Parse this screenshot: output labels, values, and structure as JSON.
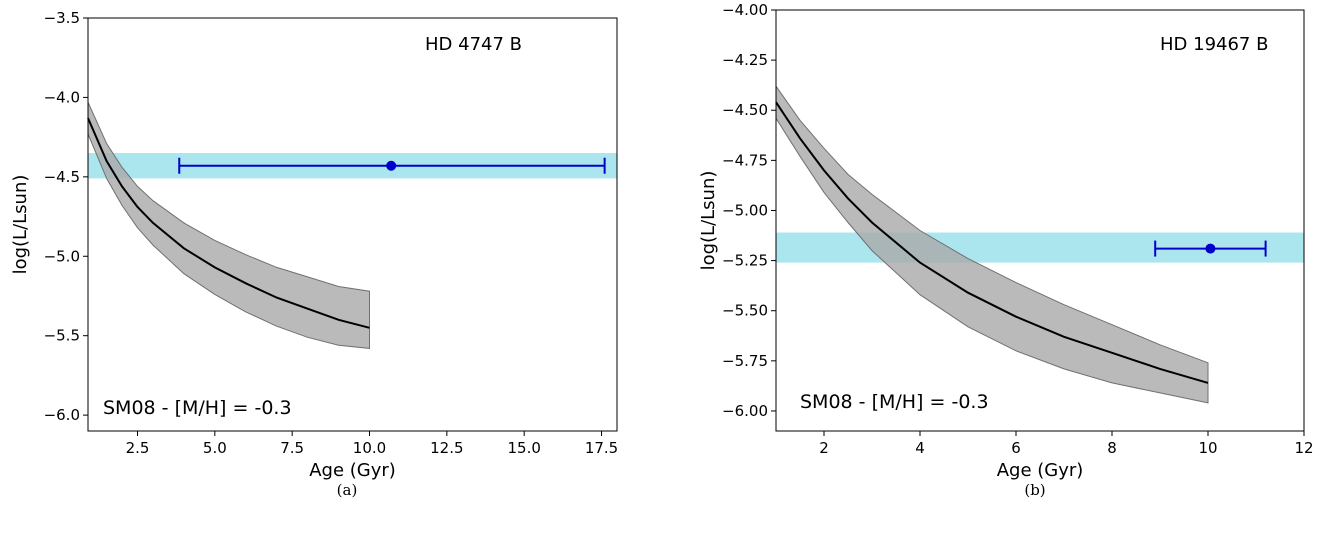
{
  "figure": {
    "panels": [
      {
        "caption": "(a)",
        "star_label": "HD 4747 B",
        "model_label": "SM08 - [M/H] = -0.3",
        "xlabel": "Age (Gyr)",
        "ylabel": "log(L/Lsun)",
        "xticks": [
          "2.5",
          "5.0",
          "7.5",
          "10.0",
          "12.5",
          "15.0",
          "17.5"
        ],
        "yticks": [
          "-3.5",
          "-4.0",
          "-4.5",
          "-5.0",
          "-5.5",
          "-6.0"
        ]
      },
      {
        "caption": "(b)",
        "star_label": "HD 19467 B",
        "model_label": "SM08 - [M/H] = -0.3",
        "xlabel": "Age (Gyr)",
        "ylabel": "log(L/Lsun)",
        "xticks": [
          "2",
          "4",
          "6",
          "8",
          "10",
          "12"
        ],
        "yticks": [
          "-4.00",
          "-4.25",
          "-4.50",
          "-4.75",
          "-5.00",
          "-5.25",
          "-5.50",
          "-5.75",
          "-6.00"
        ]
      }
    ]
  },
  "chart_data": [
    {
      "type": "line",
      "title": "HD 4747 B",
      "xlabel": "Age (Gyr)",
      "ylabel": "log(L/Lsun)",
      "xlim": [
        0.9,
        18.0
      ],
      "ylim": [
        -6.1,
        -3.5
      ],
      "xticks": [
        2.5,
        5.0,
        7.5,
        10.0,
        12.5,
        15.0,
        17.5
      ],
      "yticks": [
        -3.5,
        -4.0,
        -4.5,
        -5.0,
        -5.5,
        -6.0
      ],
      "grid": false,
      "colors": {
        "model": "#000000",
        "model_band": "#a9a9a9",
        "obs_band": "#8fdde9",
        "point": "#0000cc"
      },
      "model": {
        "x": [
          0.9,
          1.5,
          2.0,
          2.5,
          3.0,
          4.0,
          5.0,
          6.0,
          7.0,
          8.0,
          9.0,
          10.0
        ],
        "y": [
          -4.13,
          -4.4,
          -4.56,
          -4.69,
          -4.79,
          -4.95,
          -5.07,
          -5.17,
          -5.26,
          -5.33,
          -5.4,
          -5.45
        ],
        "y_upper": [
          -4.03,
          -4.29,
          -4.44,
          -4.56,
          -4.65,
          -4.79,
          -4.9,
          -4.99,
          -5.07,
          -5.13,
          -5.19,
          -5.22
        ],
        "y_lower": [
          -4.23,
          -4.51,
          -4.68,
          -4.82,
          -4.93,
          -5.11,
          -5.24,
          -5.35,
          -5.44,
          -5.51,
          -5.56,
          -5.58
        ]
      },
      "observed_luminosity_band": [
        -4.51,
        -4.35
      ],
      "measurement": {
        "x": 10.7,
        "y": -4.43,
        "x_err": [
          3.85,
          17.6
        ]
      }
    },
    {
      "type": "line",
      "title": "HD 19467 B",
      "xlabel": "Age (Gyr)",
      "ylabel": "log(L/Lsun)",
      "xlim": [
        1.0,
        12.0
      ],
      "ylim": [
        -6.1,
        -4.0
      ],
      "xticks": [
        2,
        4,
        6,
        8,
        10,
        12
      ],
      "yticks": [
        -4.0,
        -4.25,
        -4.5,
        -4.75,
        -5.0,
        -5.25,
        -5.5,
        -5.75,
        -6.0
      ],
      "grid": false,
      "colors": {
        "model": "#000000",
        "model_band": "#a9a9a9",
        "obs_band": "#8fdde9",
        "point": "#0000cc"
      },
      "model": {
        "x": [
          1.0,
          1.5,
          2.0,
          2.5,
          3.0,
          4.0,
          5.0,
          6.0,
          7.0,
          8.0,
          9.0,
          10.0
        ],
        "y": [
          -4.46,
          -4.64,
          -4.8,
          -4.94,
          -5.06,
          -5.26,
          -5.41,
          -5.53,
          -5.63,
          -5.71,
          -5.79,
          -5.86
        ],
        "y_upper": [
          -4.38,
          -4.55,
          -4.69,
          -4.82,
          -4.92,
          -5.1,
          -5.24,
          -5.36,
          -5.47,
          -5.57,
          -5.67,
          -5.76
        ],
        "y_lower": [
          -4.54,
          -4.73,
          -4.91,
          -5.06,
          -5.2,
          -5.42,
          -5.58,
          -5.7,
          -5.79,
          -5.86,
          -5.91,
          -5.96
        ]
      },
      "observed_luminosity_band": [
        -5.26,
        -5.11
      ],
      "measurement": {
        "x": 10.05,
        "y": -5.19,
        "x_err": [
          8.9,
          11.2
        ]
      }
    }
  ]
}
